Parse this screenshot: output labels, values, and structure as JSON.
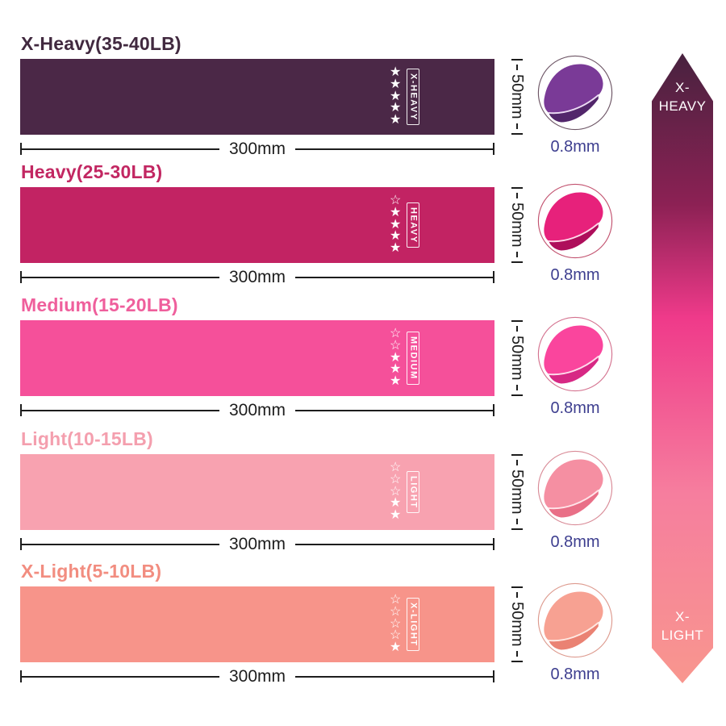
{
  "bands": [
    {
      "title": "X-Heavy(35-40LB)",
      "label": "X-HEAVY",
      "stars_filled": 5,
      "stars_total": 5,
      "width_label": "300mm",
      "height_label": "50mm",
      "thickness_label": "0.8mm",
      "title_color": "#41293f",
      "band_color": "#4b2847",
      "photo_main": "#7a3a97",
      "photo_dark": "#52266b",
      "photo_light": "#ecdcf4",
      "ring": "#6d5565"
    },
    {
      "title": "Heavy(25-30LB)",
      "label": "HEAVY",
      "stars_filled": 4,
      "stars_total": 5,
      "width_label": "300mm",
      "height_label": "50mm",
      "thickness_label": "0.8mm",
      "title_color": "#c22762",
      "band_color": "#c22363",
      "photo_main": "#e7217b",
      "photo_dark": "#ae0e5b",
      "photo_light": "#ffd9e9",
      "ring": "#c2526f"
    },
    {
      "title": "Medium(15-20LB)",
      "label": "MEDIUM",
      "stars_filled": 3,
      "stars_total": 5,
      "width_label": "300mm",
      "height_label": "50mm",
      "thickness_label": "0.8mm",
      "title_color": "#ef5f9c",
      "band_color": "#f5509a",
      "photo_main": "#fa459d",
      "photo_dark": "#d72884",
      "photo_light": "#ffdcec",
      "ring": "#d4728f"
    },
    {
      "title": "Light(10-15LB)",
      "label": "LIGHT",
      "stars_filled": 2,
      "stars_total": 5,
      "width_label": "300mm",
      "height_label": "50mm",
      "thickness_label": "0.8mm",
      "title_color": "#f49fae",
      "band_color": "#f8a2b0",
      "photo_main": "#f58fa2",
      "photo_dark": "#e96f87",
      "photo_light": "#ffe4e9",
      "ring": "#d98b97"
    },
    {
      "title": "X-Light(5-10LB)",
      "label": "X-LIGHT",
      "stars_filled": 1,
      "stars_total": 5,
      "width_label": "300mm",
      "height_label": "50mm",
      "thickness_label": "0.8mm",
      "title_color": "#f28d80",
      "band_color": "#f7948a",
      "photo_main": "#f7a192",
      "photo_dark": "#ea8273",
      "photo_light": "#ffe9e3",
      "ring": "#dd9a8e"
    }
  ],
  "icons": {
    "star_filled": "★",
    "star_outline": "☆"
  },
  "scale_arrow": {
    "top_line1": "X-",
    "top_line2": "HEAVY",
    "bottom_line1": "X-",
    "bottom_line2": "LIGHT",
    "gradient": [
      "#48223f",
      "#8c2154",
      "#ef3a8a",
      "#f67e9e",
      "#f8968e"
    ]
  },
  "styles": {
    "background": "#ffffff",
    "dimension_text": "#1d1d1d",
    "thickness_text": "#3d3e8f",
    "star_color": "#ffffff"
  }
}
